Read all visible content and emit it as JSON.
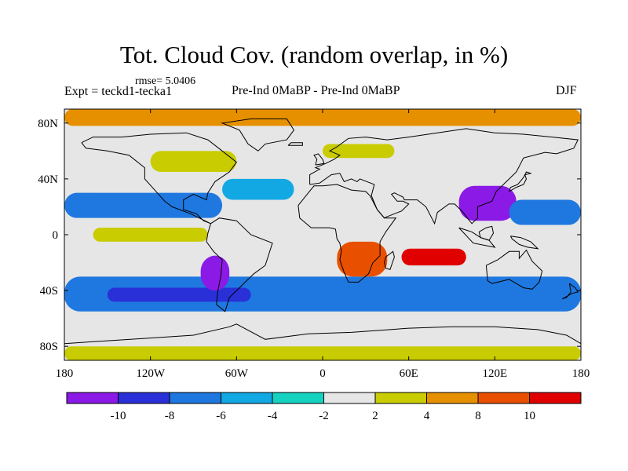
{
  "header": {
    "title": "Tot. Cloud Cov. (random overlap, in %)",
    "rmse": "rmse= 5.0406",
    "expt": "Expt = teckd1-tecka1",
    "period": "Pre-Ind 0MaBP - Pre-Ind 0MaBP",
    "season": "DJF"
  },
  "chart_data": {
    "type": "heatmap",
    "title": "Tot. Cloud Cov. (random overlap, in %)",
    "subtitle": "Pre-Ind 0MaBP - Pre-Ind 0MaBP",
    "xlabel": "",
    "ylabel": "",
    "xlim": [
      -180,
      180
    ],
    "ylim": [
      -90,
      90
    ],
    "x_ticks": [
      {
        "value": -180,
        "label": "180"
      },
      {
        "value": -120,
        "label": "120W"
      },
      {
        "value": -60,
        "label": "60W"
      },
      {
        "value": 0,
        "label": "0"
      },
      {
        "value": 60,
        "label": "60E"
      },
      {
        "value": 120,
        "label": "120E"
      },
      {
        "value": 180,
        "label": "180"
      }
    ],
    "y_ticks": [
      {
        "value": 80,
        "label": "80N"
      },
      {
        "value": 40,
        "label": "40N"
      },
      {
        "value": 0,
        "label": "0"
      },
      {
        "value": -40,
        "label": "40S"
      },
      {
        "value": -80,
        "label": "80S"
      }
    ],
    "colorbar": {
      "labels": [
        "-10",
        "-8",
        "-6",
        "-4",
        "-2",
        "2",
        "4",
        "8",
        "10"
      ],
      "colors": [
        "#8b1ae6",
        "#2a30d8",
        "#1e78e0",
        "#12a8e4",
        "#16d2c0",
        "#e6e6e6",
        "#c8cc00",
        "#e69000",
        "#e85000",
        "#e00000"
      ]
    },
    "regions": [
      {
        "name": "arctic",
        "lon": -180,
        "lat": 90,
        "w": 360,
        "h": 12,
        "cls": 7
      },
      {
        "name": "antarctic",
        "lon": -180,
        "lat": -80,
        "w": 360,
        "h": 10,
        "cls": 6
      },
      {
        "name": "north-pacific-band",
        "lon": -180,
        "lat": 30,
        "w": 110,
        "h": 18,
        "cls": 2
      },
      {
        "name": "south-ocean-band",
        "lon": -180,
        "lat": -30,
        "w": 360,
        "h": 25,
        "cls": 2
      },
      {
        "name": "south-pacific-core",
        "lon": -150,
        "lat": -38,
        "w": 100,
        "h": 10,
        "cls": 1
      },
      {
        "name": "andes-min",
        "lon": -85,
        "lat": -15,
        "w": 20,
        "h": 25,
        "cls": 0
      },
      {
        "name": "atlantic-band",
        "lon": -70,
        "lat": 40,
        "w": 50,
        "h": 15,
        "cls": 3
      },
      {
        "name": "southern-africa-max",
        "lon": 10,
        "lat": -5,
        "w": 35,
        "h": 25,
        "cls": 8
      },
      {
        "name": "indian-ocean-max",
        "lon": 55,
        "lat": -10,
        "w": 45,
        "h": 12,
        "cls": 9
      },
      {
        "name": "asia-min",
        "lon": 95,
        "lat": 35,
        "w": 40,
        "h": 25,
        "cls": 0
      },
      {
        "name": "west-pacific-band",
        "lon": 130,
        "lat": 25,
        "w": 50,
        "h": 18,
        "cls": 2
      },
      {
        "name": "equatorial-pacific",
        "lon": -160,
        "lat": 5,
        "w": 80,
        "h": 10,
        "cls": 6
      },
      {
        "name": "north-america",
        "lon": -120,
        "lat": 60,
        "w": 60,
        "h": 15,
        "cls": 6
      },
      {
        "name": "europe",
        "lon": 0,
        "lat": 65,
        "w": 50,
        "h": 10,
        "cls": 6
      }
    ]
  }
}
